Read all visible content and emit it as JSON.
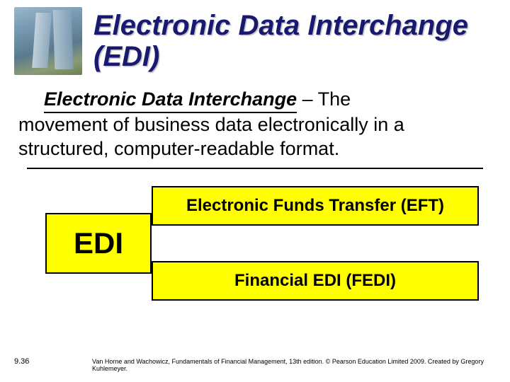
{
  "title": "Electronic Data Interchange (EDI)",
  "definition": {
    "term": "Electronic Data Interchange",
    "rest_first_line": " – The",
    "rest": "movement of business data electronically in a structured, computer-readable format."
  },
  "diagram": {
    "edi_label": "EDI",
    "eft_label": "Electronic Funds Transfer (EFT)",
    "fedi_label": "Financial EDI (FEDI)"
  },
  "footer": {
    "page_number": "9.36",
    "attribution": "Van Horne and Wachowicz, Fundamentals of Financial Management, 13th edition. © Pearson Education Limited 2009. Created by Gregory Kuhlemeyer."
  },
  "colors": {
    "title_color": "#191970",
    "highlight_bg": "#ffff00",
    "border_color": "#000000",
    "text_color": "#000000",
    "background": "#ffffff"
  },
  "typography": {
    "title_fontsize": 40,
    "body_fontsize": 27,
    "box_large_fontsize": 42,
    "box_small_fontsize": 24,
    "footer_fontsize": 9
  }
}
